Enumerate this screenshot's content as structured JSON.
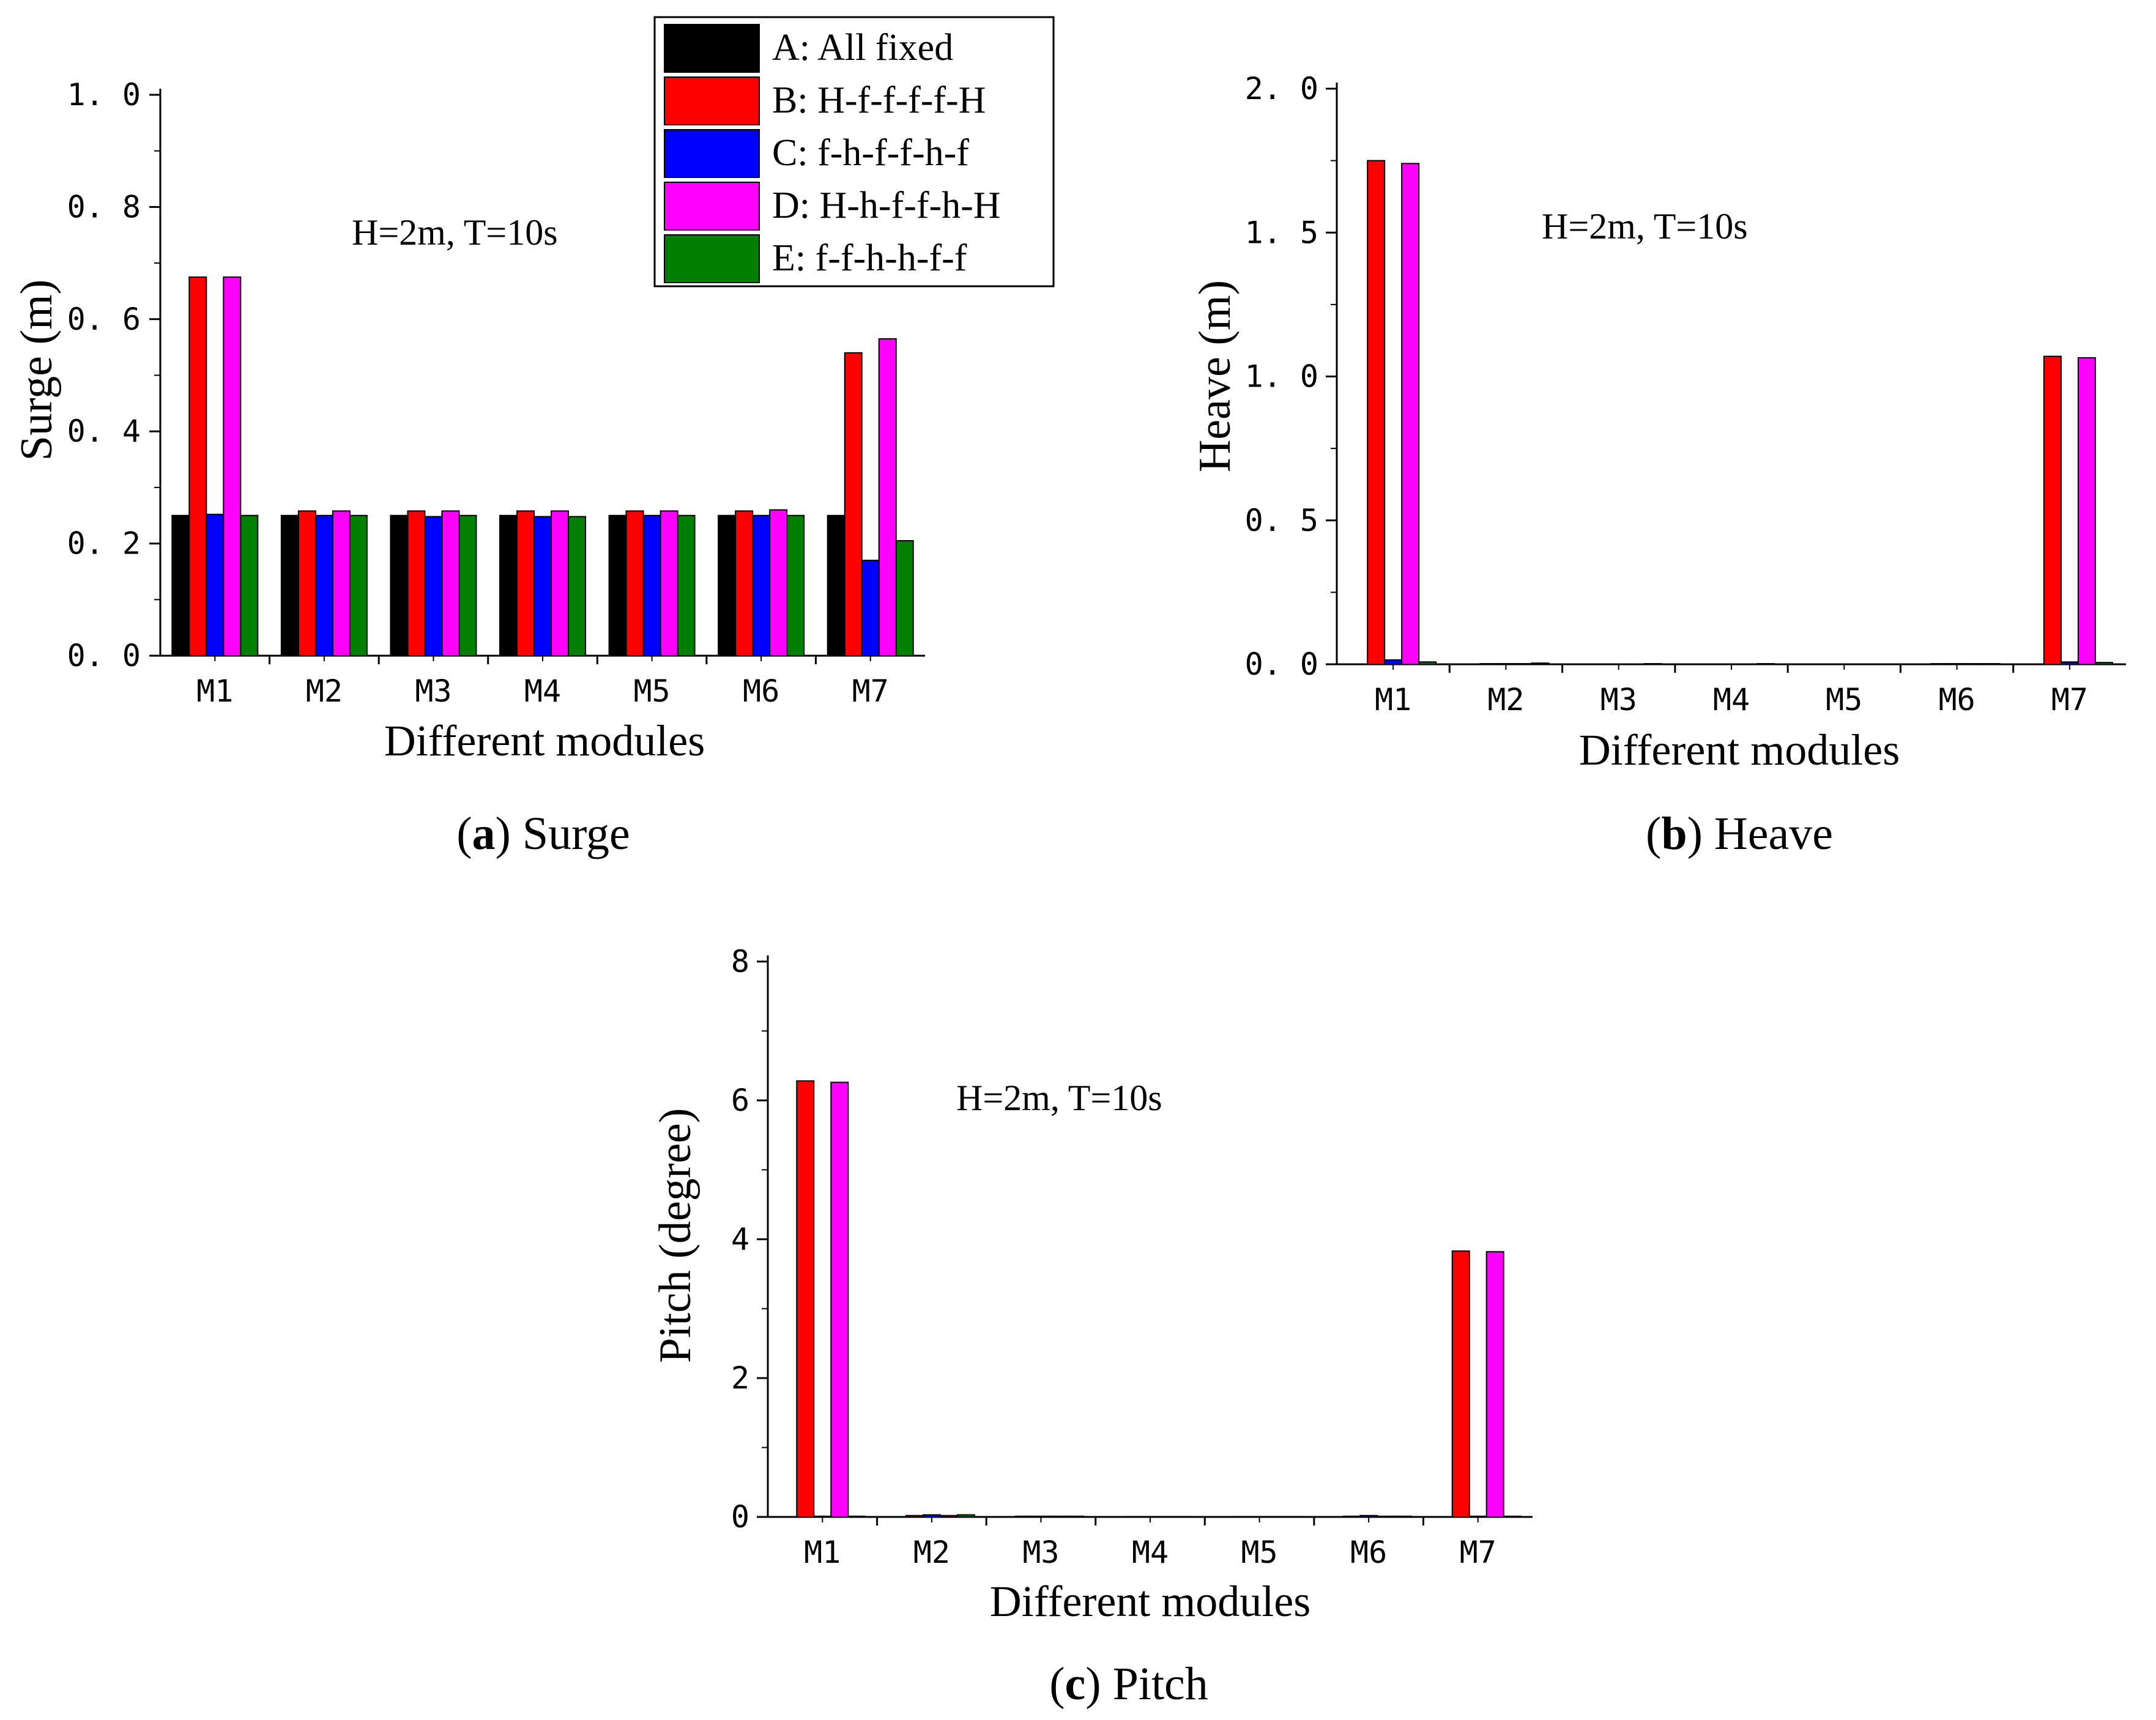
{
  "figure": {
    "legend": [
      {
        "label": "A: All fixed",
        "color": "#000000"
      },
      {
        "label": "B: H-f-f-f-f-H",
        "color": "#ff0000"
      },
      {
        "label": "C: f-h-f-f-h-f",
        "color": "#0000ff"
      },
      {
        "label": "D: H-h-f-f-h-H",
        "color": "#ff00ff"
      },
      {
        "label": "E: f-f-h-h-f-f",
        "color": "#008000"
      }
    ]
  },
  "chart_data": [
    {
      "type": "bar",
      "panel_tag": "a",
      "panel_name": "Surge",
      "annotation": "H=2m, T=10s",
      "xlabel": "Different modules",
      "ylabel": "Surge (m)",
      "categories": [
        "M1",
        "M2",
        "M3",
        "M4",
        "M5",
        "M6",
        "M7"
      ],
      "ylim": [
        0,
        1.0
      ],
      "yticks": [
        0.0,
        0.2,
        0.4,
        0.6,
        0.8,
        1.0
      ],
      "ytick_labels": [
        "0. 0",
        "0. 2",
        "0. 4",
        "0. 6",
        "0. 8",
        "1. 0"
      ],
      "series": [
        {
          "name": "A: All fixed",
          "values": [
            0.25,
            0.25,
            0.25,
            0.25,
            0.25,
            0.25,
            0.25
          ]
        },
        {
          "name": "B: H-f-f-f-f-H",
          "values": [
            0.675,
            0.258,
            0.258,
            0.258,
            0.258,
            0.258,
            0.54
          ]
        },
        {
          "name": "C: f-h-f-f-h-f",
          "values": [
            0.252,
            0.25,
            0.248,
            0.248,
            0.25,
            0.25,
            0.17
          ]
        },
        {
          "name": "D: H-h-f-f-h-H",
          "values": [
            0.675,
            0.258,
            0.258,
            0.258,
            0.258,
            0.26,
            0.565
          ]
        },
        {
          "name": "E: f-f-h-h-f-f",
          "values": [
            0.25,
            0.25,
            0.25,
            0.248,
            0.25,
            0.25,
            0.205
          ]
        }
      ]
    },
    {
      "type": "bar",
      "panel_tag": "b",
      "panel_name": "Heave",
      "annotation": "H=2m, T=10s",
      "xlabel": "Different modules",
      "ylabel": "Heave (m)",
      "categories": [
        "M1",
        "M2",
        "M3",
        "M4",
        "M5",
        "M6",
        "M7"
      ],
      "ylim": [
        0,
        2.0
      ],
      "yticks": [
        0.0,
        0.5,
        1.0,
        1.5,
        2.0
      ],
      "ytick_labels": [
        "0. 0",
        "0. 5",
        "1. 0",
        "1. 5",
        "2. 0"
      ],
      "series": [
        {
          "name": "A: All fixed",
          "values": [
            0,
            0,
            0,
            0,
            0,
            0,
            0
          ]
        },
        {
          "name": "B: H-f-f-f-f-H",
          "values": [
            1.75,
            0.002,
            0.001,
            0.001,
            0.001,
            0.002,
            1.07
          ]
        },
        {
          "name": "C: f-h-f-f-h-f",
          "values": [
            0.015,
            0.002,
            0.001,
            0.001,
            0.001,
            0.002,
            0.008
          ]
        },
        {
          "name": "D: H-h-f-f-h-H",
          "values": [
            1.74,
            0.002,
            0.001,
            0.001,
            0.001,
            0.002,
            1.065
          ]
        },
        {
          "name": "E: f-f-h-h-f-f",
          "values": [
            0.008,
            0.004,
            0.002,
            0.002,
            0.001,
            0.002,
            0.006
          ]
        }
      ]
    },
    {
      "type": "bar",
      "panel_tag": "c",
      "panel_name": "Pitch",
      "annotation": "H=2m, T=10s",
      "xlabel": "Different modules",
      "ylabel": "Pitch (degree)",
      "categories": [
        "M1",
        "M2",
        "M3",
        "M4",
        "M5",
        "M6",
        "M7"
      ],
      "ylim": [
        0,
        8
      ],
      "yticks": [
        0,
        2,
        4,
        6,
        8
      ],
      "ytick_labels": [
        "0",
        "2",
        "4",
        "6",
        "8"
      ],
      "series": [
        {
          "name": "A: All fixed",
          "values": [
            0,
            0,
            0,
            0,
            0,
            0,
            0
          ]
        },
        {
          "name": "B: H-f-f-f-f-H",
          "values": [
            6.28,
            0.02,
            0.01,
            0.005,
            0.005,
            0.01,
            3.83
          ]
        },
        {
          "name": "C: f-h-f-f-h-f",
          "values": [
            0.01,
            0.03,
            0.01,
            0.005,
            0.005,
            0.02,
            0.01
          ]
        },
        {
          "name": "D: H-h-f-f-h-H",
          "values": [
            6.26,
            0.02,
            0.01,
            0.005,
            0.005,
            0.01,
            3.82
          ]
        },
        {
          "name": "E: f-f-h-h-f-f",
          "values": [
            0.01,
            0.03,
            0.01,
            0.005,
            0.005,
            0.01,
            0.01
          ]
        }
      ]
    }
  ]
}
